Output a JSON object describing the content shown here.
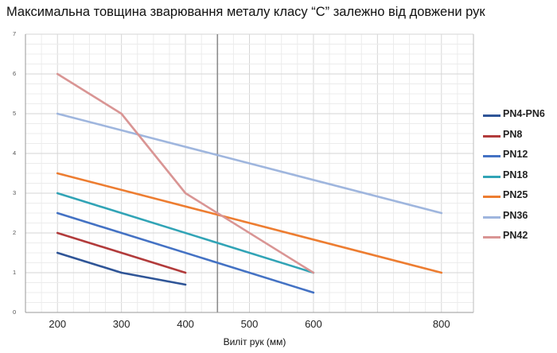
{
  "chart_data": {
    "type": "line",
    "title": "Максимальна товщина зварювання металу класу “C” залежно від довжени рук",
    "xlabel": "Виліт рук (мм)",
    "ylabel": "",
    "xlim": [
      150,
      850
    ],
    "ylim": [
      0,
      7
    ],
    "x_ticks": [
      200,
      300,
      400,
      500,
      600,
      800
    ],
    "y_ticks": [
      0,
      1,
      2,
      3,
      4,
      5,
      6,
      7
    ],
    "grid": true,
    "reference_line_x": 450,
    "legend_position": "right",
    "series": [
      {
        "name": "PN4-PN6",
        "color": "#2f5597",
        "x": [
          200,
          300,
          400
        ],
        "y": [
          1.5,
          1.0,
          0.7
        ]
      },
      {
        "name": "PN8",
        "color": "#b23b3b",
        "x": [
          200,
          400
        ],
        "y": [
          2.0,
          1.0
        ]
      },
      {
        "name": "PN12",
        "color": "#4472c4",
        "x": [
          200,
          600
        ],
        "y": [
          2.5,
          0.5
        ]
      },
      {
        "name": "PN18",
        "color": "#31a4b6",
        "x": [
          200,
          600
        ],
        "y": [
          3.0,
          1.0
        ]
      },
      {
        "name": "PN25",
        "color": "#ed7d31",
        "x": [
          200,
          800
        ],
        "y": [
          3.5,
          1.0
        ]
      },
      {
        "name": "PN36",
        "color": "#9fb6de",
        "x": [
          200,
          800
        ],
        "y": [
          5.0,
          2.5
        ]
      },
      {
        "name": "PN42",
        "color": "#d99594",
        "x": [
          200,
          300,
          400,
          600
        ],
        "y": [
          6.0,
          5.0,
          3.0,
          1.0
        ]
      }
    ]
  }
}
